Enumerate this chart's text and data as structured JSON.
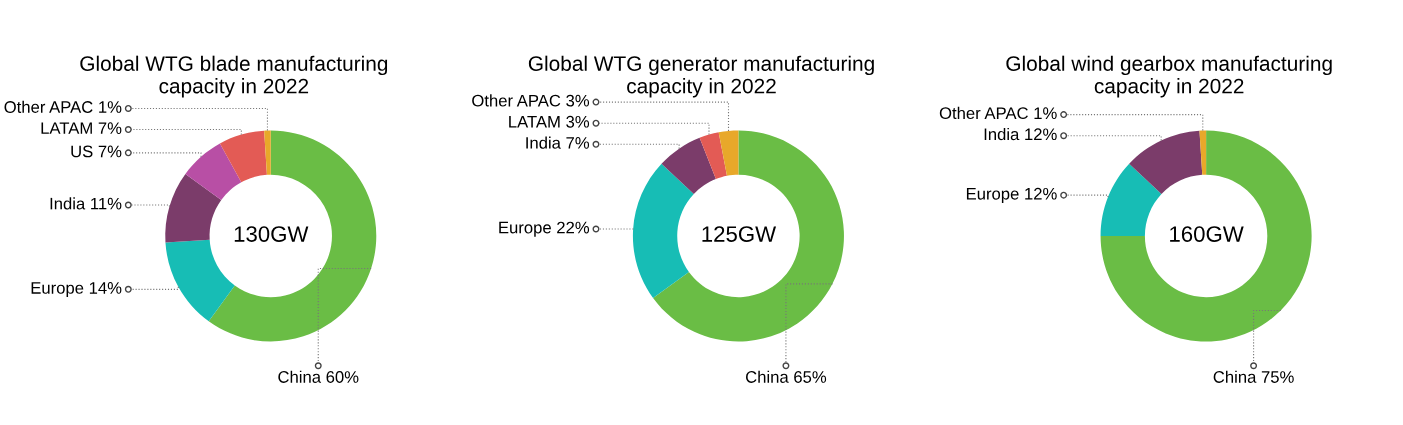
{
  "chart_data": [
    {
      "type": "donut",
      "title": "Global WTG blade manufacturing\ncapacity in 2022",
      "categories": [
        "China",
        "Europe",
        "India",
        "US",
        "LATAM",
        "Other APAC"
      ],
      "values": [
        60,
        14,
        11,
        7,
        7,
        1
      ],
      "value_labels": [
        "60%",
        "14%",
        "11%",
        "7%",
        "7%",
        "1%"
      ],
      "colors": [
        "#6abd45",
        "#17bdb5",
        "#7b3c6a",
        "#b84fa5",
        "#e35b55",
        "#e8a82a"
      ],
      "annotations": [
        "130GW"
      ],
      "legend": false
    },
    {
      "type": "donut",
      "title": "Global WTG generator manufacturing\ncapacity in 2022",
      "categories": [
        "China",
        "Europe",
        "India",
        "LATAM",
        "Other APAC"
      ],
      "values": [
        65,
        22,
        7,
        3,
        3
      ],
      "value_labels": [
        "65%",
        "22%",
        "7%",
        "3%",
        "3%"
      ],
      "colors": [
        "#6abd45",
        "#17bdb5",
        "#7b3c6a",
        "#e35b55",
        "#e8a82a"
      ],
      "annotations": [
        "125GW"
      ],
      "legend": false
    },
    {
      "type": "donut",
      "title": "Global wind gearbox manufacturing\ncapacity in 2022",
      "categories": [
        "China",
        "Europe",
        "India",
        "Other APAC"
      ],
      "values": [
        75,
        12,
        12,
        1
      ],
      "value_labels": [
        "75%",
        "12%",
        "12%",
        "1%"
      ],
      "colors": [
        "#6abd45",
        "#17bdb5",
        "#7b3c6a",
        "#e8a82a"
      ],
      "annotations": [
        "160GW"
      ],
      "legend": false
    }
  ]
}
